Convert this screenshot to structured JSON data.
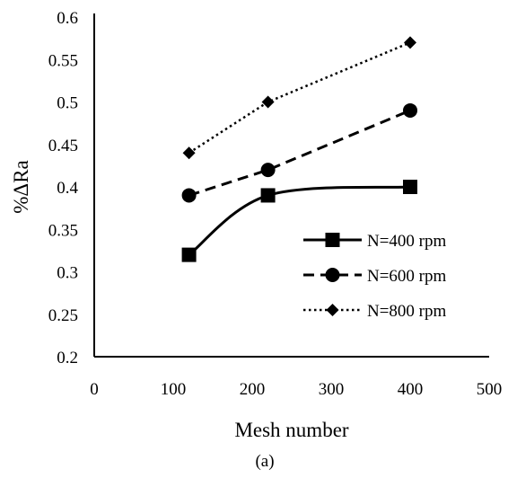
{
  "chart_data": {
    "type": "line",
    "xlabel": "Mesh number",
    "ylabel": "%ΔRa",
    "caption": "(a)",
    "xlim": [
      0,
      500
    ],
    "ylim": [
      0.2,
      0.6
    ],
    "x_ticks": [
      0,
      100,
      200,
      300,
      400,
      500
    ],
    "y_ticks": [
      0.2,
      0.25,
      0.3,
      0.35,
      0.4,
      0.45,
      0.5,
      0.55,
      0.6
    ],
    "x_tick_labels": [
      "0",
      "100",
      "200",
      "300",
      "400",
      "500"
    ],
    "y_tick_labels": [
      "0.2",
      "0.25",
      "0.3",
      "0.35",
      "0.4",
      "0.45",
      "0.5",
      "0.55",
      "0.6"
    ],
    "legend_position": "lower-right",
    "series": [
      {
        "name": "N=400 rpm",
        "x": [
          120,
          220,
          400
        ],
        "y": [
          0.32,
          0.39,
          0.4
        ],
        "line_style": "solid",
        "marker": "square",
        "smooth": true
      },
      {
        "name": "N=600 rpm",
        "x": [
          120,
          220,
          400
        ],
        "y": [
          0.39,
          0.42,
          0.49
        ],
        "line_style": "dashed",
        "marker": "circle"
      },
      {
        "name": "N=800 rpm",
        "x": [
          120,
          220,
          400
        ],
        "y": [
          0.44,
          0.5,
          0.57
        ],
        "line_style": "dotted",
        "marker": "diamond"
      }
    ]
  }
}
